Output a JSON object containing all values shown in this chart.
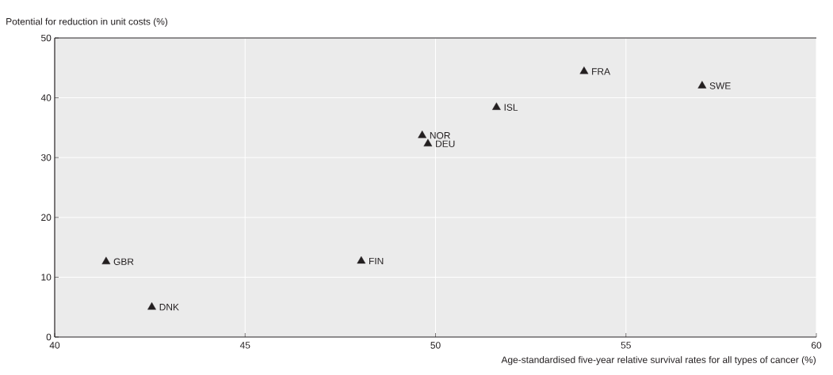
{
  "chart_data": {
    "type": "scatter",
    "xlabel": "Age-standardised five-year relative survival rates for all types of cancer (%)",
    "ylabel": "Potential for reduction in unit costs (%)",
    "x": [
      41.35,
      42.55,
      48.05,
      49.65,
      49.8,
      51.6,
      53.9,
      57.0
    ],
    "values": [
      12.6,
      5.0,
      12.7,
      33.7,
      32.3,
      38.4,
      44.4,
      42.0
    ],
    "color": "#231f20",
    "marker": "triangle",
    "annotations": [
      {
        "text": "GBR",
        "x": 41.35,
        "y": 12.6
      },
      {
        "text": "DNK",
        "x": 42.55,
        "y": 5.0
      },
      {
        "text": "FIN",
        "x": 48.05,
        "y": 12.7
      },
      {
        "text": "NOR",
        "x": 49.65,
        "y": 33.7
      },
      {
        "text": "DEU",
        "x": 49.8,
        "y": 32.3
      },
      {
        "text": "ISL",
        "x": 51.6,
        "y": 38.4
      },
      {
        "text": "FRA",
        "x": 53.9,
        "y": 44.4
      },
      {
        "text": "SWE",
        "x": 57.0,
        "y": 42.0
      }
    ],
    "xlim": [
      40,
      60
    ],
    "ylim": [
      0,
      50
    ],
    "xticks": [
      40,
      45,
      50,
      55,
      60
    ],
    "yticks": [
      0,
      10,
      20,
      30,
      40,
      50
    ],
    "grid": true
  }
}
